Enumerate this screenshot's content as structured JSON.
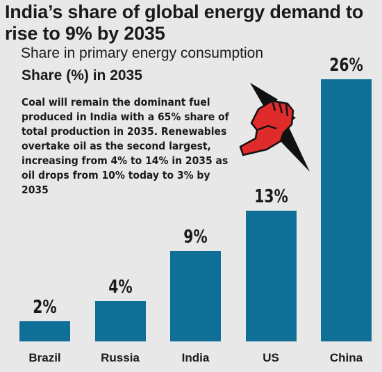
{
  "chart_data": {
    "type": "bar",
    "title": "India’s share of global energy demand to rise to 9% by 2035",
    "subtitle": "Share in primary energy consumption",
    "ylabel": "Share (%) in 2035",
    "categories": [
      "Brazil",
      "Russia",
      "India",
      "US",
      "China"
    ],
    "values": [
      2,
      4,
      9,
      13,
      26
    ],
    "value_labels": [
      "2%",
      "4%",
      "9%",
      "13%",
      "26%"
    ],
    "ylim": [
      0,
      26
    ],
    "grid": false,
    "bar_color": "#0f6f97",
    "annotation": "Coal will remain the dominant fuel produced in India with a 65% share of total production in 2035. Renewables overtake oil as the second largest, increasing from 4% to 14% in 2035 as oil drops from 10% today to 3% by 2035"
  },
  "icon": {
    "name": "fist-lightning-icon",
    "fist_color": "#e02b2b",
    "bolt_color": "#111111"
  },
  "colors": {
    "background": "#e8e8e8",
    "text": "#1a1a1a"
  }
}
